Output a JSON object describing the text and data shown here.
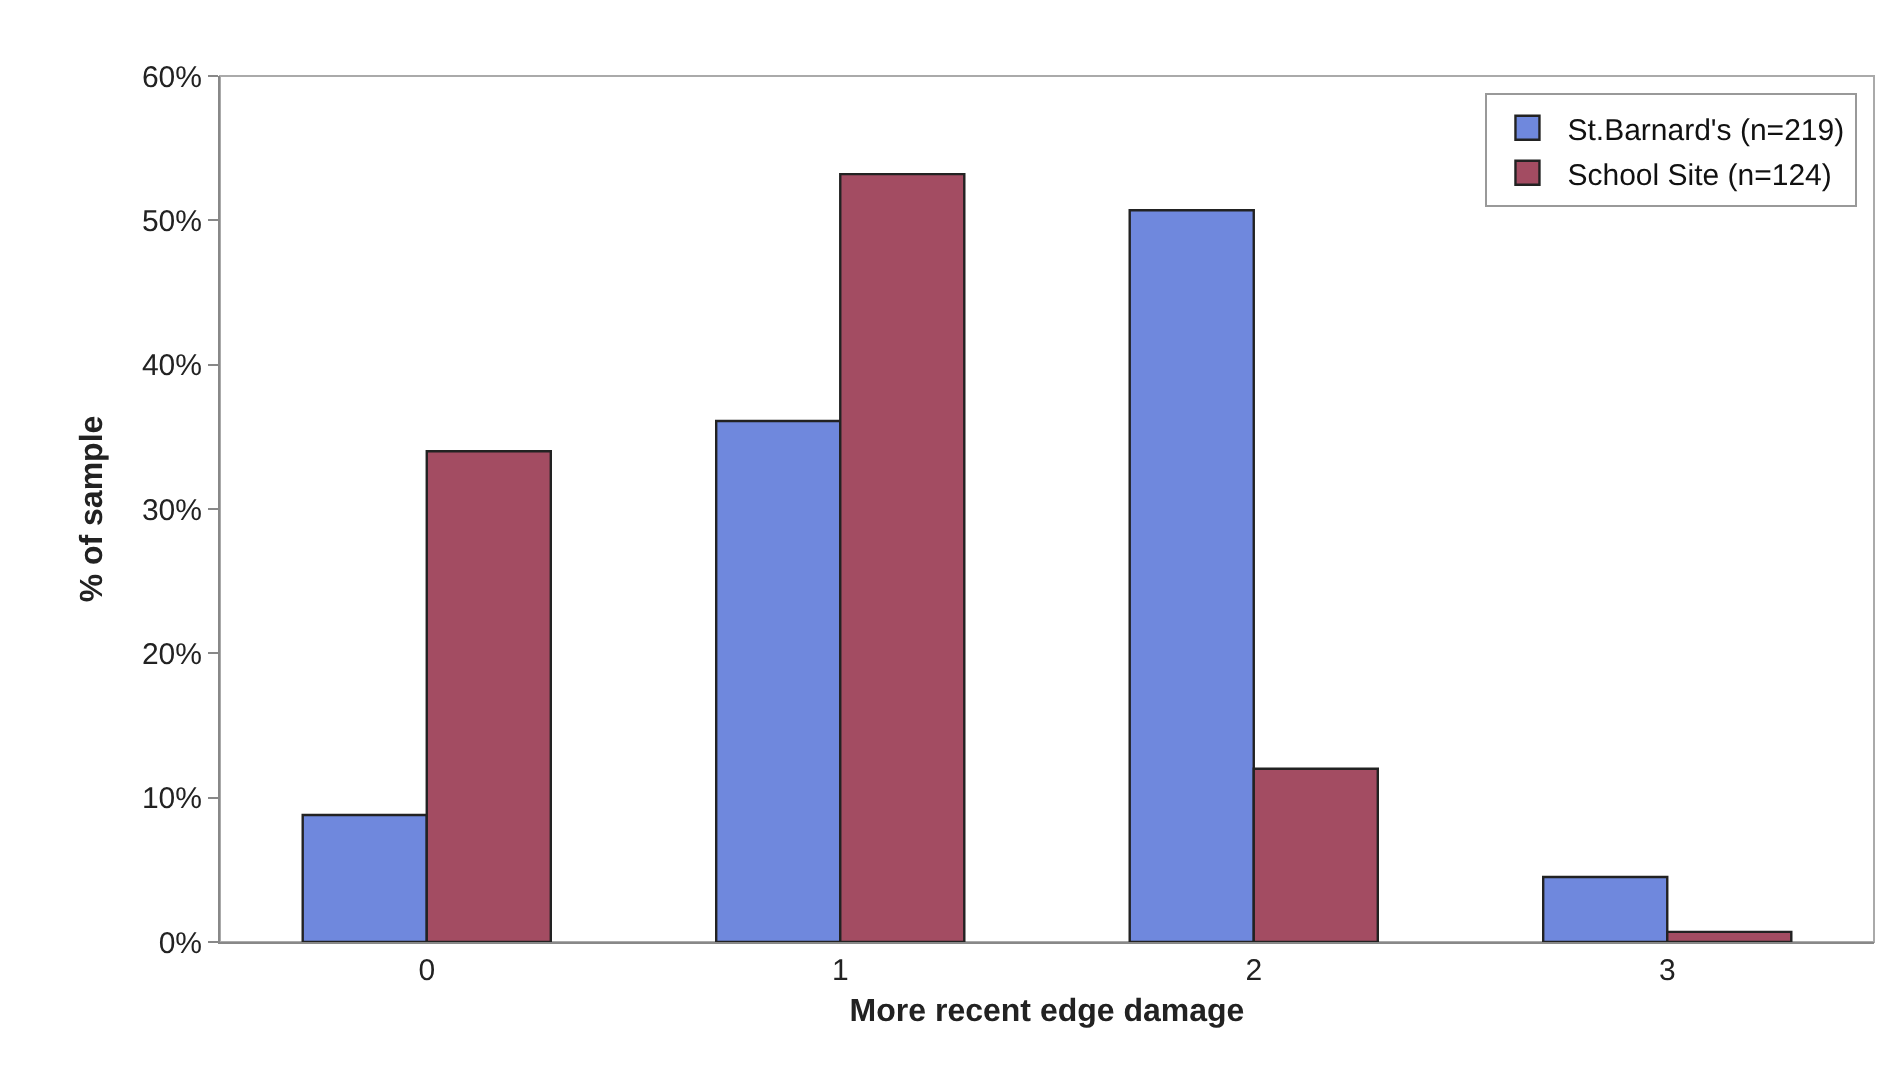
{
  "chart_data": {
    "type": "bar",
    "xlabel": "More recent edge damage",
    "ylabel": "% of sample",
    "categories": [
      "0",
      "1",
      "2",
      "3"
    ],
    "series": [
      {
        "name": "St.Barnard's (n=219)",
        "color": "#6f88dd",
        "values": [
          8.8,
          36.1,
          50.7,
          4.5
        ]
      },
      {
        "name": "School Site (n=124)",
        "color": "#a34c62",
        "values": [
          34.0,
          53.2,
          12.0,
          0.7
        ]
      }
    ],
    "ylim": [
      0,
      60
    ],
    "yticks": [
      {
        "value": 0,
        "label": "0%"
      },
      {
        "value": 10,
        "label": "10%"
      },
      {
        "value": 20,
        "label": "20%"
      },
      {
        "value": 30,
        "label": "30%"
      },
      {
        "value": 40,
        "label": "40%"
      },
      {
        "value": 50,
        "label": "50%"
      },
      {
        "value": 60,
        "label": "60%"
      }
    ],
    "grid": false,
    "legend": "top right"
  }
}
